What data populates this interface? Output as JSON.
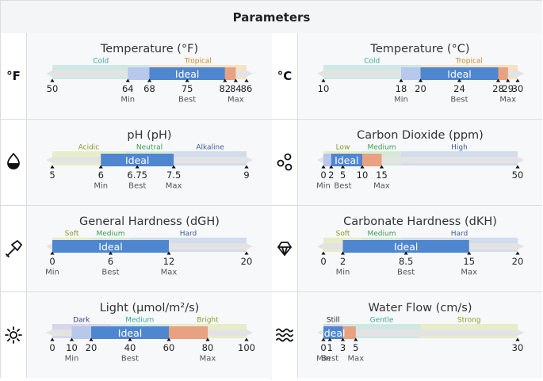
{
  "header": {
    "title": "Parameters"
  },
  "params": [
    {
      "key": "temp_f",
      "title": "Temperature (°F)",
      "icon": "°F",
      "icon_name": "fahrenheit-icon",
      "min": 50,
      "max": 86,
      "zones": [
        {
          "label": "Cold",
          "from": 50,
          "to": 68,
          "color": "#cfe8e4",
          "text_color": "#3aa79b"
        },
        {
          "label": "Tropical",
          "from": 68,
          "to": 86,
          "color": "#f6e2c4",
          "text_color": "#c8892a"
        }
      ],
      "ideal": {
        "label": "Ideal",
        "from": 68,
        "to": 82
      },
      "under": {
        "from": 64,
        "to": 68
      },
      "over": {
        "from": 82,
        "to": 84
      },
      "ticks": [
        {
          "value": 50,
          "label": "50",
          "sub": ""
        },
        {
          "value": 64,
          "label": "64",
          "sub": "Min"
        },
        {
          "value": 68,
          "label": "68",
          "sub": ""
        },
        {
          "value": 75,
          "label": "75",
          "sub": "Best"
        },
        {
          "value": 82,
          "label": "82",
          "sub": ""
        },
        {
          "value": 84,
          "label": "84",
          "sub": "Max"
        },
        {
          "value": 86,
          "label": "86",
          "sub": ""
        }
      ]
    },
    {
      "key": "temp_c",
      "title": "Temperature (°C)",
      "icon": "°C",
      "icon_name": "celsius-icon",
      "min": 10,
      "max": 30,
      "zones": [
        {
          "label": "Cold",
          "from": 10,
          "to": 20,
          "color": "#cfe8e4",
          "text_color": "#3aa79b"
        },
        {
          "label": "Tropical",
          "from": 20,
          "to": 30,
          "color": "#f6e2c4",
          "text_color": "#c8892a"
        }
      ],
      "ideal": {
        "label": "Ideal",
        "from": 20,
        "to": 28
      },
      "under": {
        "from": 18,
        "to": 20
      },
      "over": {
        "from": 28,
        "to": 29
      },
      "ticks": [
        {
          "value": 10,
          "label": "10",
          "sub": ""
        },
        {
          "value": 18,
          "label": "18",
          "sub": "Min"
        },
        {
          "value": 20,
          "label": "20",
          "sub": ""
        },
        {
          "value": 24,
          "label": "24",
          "sub": "Best"
        },
        {
          "value": 28,
          "label": "28",
          "sub": ""
        },
        {
          "value": 29,
          "label": "29",
          "sub": "Max"
        },
        {
          "value": 30,
          "label": "30",
          "sub": ""
        }
      ]
    },
    {
      "key": "ph",
      "title": "pH (pH)",
      "icon": "",
      "icon_name": "water-drop-icon",
      "min": 5,
      "max": 9,
      "zones": [
        {
          "label": "Acidic",
          "from": 5,
          "to": 6.5,
          "color": "#e7ecc9",
          "text_color": "#8a9a2a"
        },
        {
          "label": "Neutral",
          "from": 6.5,
          "to": 7.5,
          "color": "#d4ead7",
          "text_color": "#3f9b50"
        },
        {
          "label": "Alkaline",
          "from": 7.5,
          "to": 9,
          "color": "#d3dcec",
          "text_color": "#3c5f98"
        }
      ],
      "ideal": {
        "label": "Ideal",
        "from": 6,
        "to": 7.5
      },
      "under": null,
      "over": null,
      "ticks": [
        {
          "value": 5,
          "label": "5",
          "sub": ""
        },
        {
          "value": 6,
          "label": "6",
          "sub": "Min"
        },
        {
          "value": 6.75,
          "label": "6.75",
          "sub": "Best"
        },
        {
          "value": 7.5,
          "label": "7.5",
          "sub": "Max"
        },
        {
          "value": 9,
          "label": "9",
          "sub": ""
        }
      ]
    },
    {
      "key": "co2",
      "title": "Carbon Dioxide (ppm)",
      "icon": "",
      "icon_name": "bubbles-icon",
      "min": 0,
      "max": 50,
      "zones": [
        {
          "label": "Low",
          "from": 0,
          "to": 10,
          "color": "#e7ecc9",
          "text_color": "#8a9a2a"
        },
        {
          "label": "Medium",
          "from": 10,
          "to": 20,
          "color": "#d4ead7",
          "text_color": "#3f9b50"
        },
        {
          "label": "High",
          "from": 20,
          "to": 50,
          "color": "#d3dcec",
          "text_color": "#3c5f98"
        }
      ],
      "ideal": {
        "label": "Ideal",
        "from": 2,
        "to": 10
      },
      "under": {
        "from": 0,
        "to": 2
      },
      "over": {
        "from": 10,
        "to": 15
      },
      "ticks": [
        {
          "value": 0,
          "label": "0",
          "sub": "Min"
        },
        {
          "value": 2,
          "label": "2",
          "sub": ""
        },
        {
          "value": 5,
          "label": "5",
          "sub": "Best"
        },
        {
          "value": 10,
          "label": "10",
          "sub": ""
        },
        {
          "value": 15,
          "label": "15",
          "sub": "Max"
        },
        {
          "value": 50,
          "label": "50",
          "sub": ""
        }
      ]
    },
    {
      "key": "gh",
      "title": "General Hardness (dGH)",
      "icon": "",
      "icon_name": "hammer-icon",
      "min": 0,
      "max": 20,
      "zones": [
        {
          "label": "Soft",
          "from": 0,
          "to": 4,
          "color": "#e7ecc9",
          "text_color": "#8a9a2a"
        },
        {
          "label": "Medium",
          "from": 4,
          "to": 8,
          "color": "#d4ead7",
          "text_color": "#3f9b50"
        },
        {
          "label": "Hard",
          "from": 8,
          "to": 20,
          "color": "#d3dcec",
          "text_color": "#3c5f98"
        }
      ],
      "ideal": {
        "label": "Ideal",
        "from": 0,
        "to": 12
      },
      "under": null,
      "over": null,
      "ticks": [
        {
          "value": 0,
          "label": "0",
          "sub": "Min"
        },
        {
          "value": 6,
          "label": "6",
          "sub": "Best"
        },
        {
          "value": 12,
          "label": "12",
          "sub": "Max"
        },
        {
          "value": 20,
          "label": "20",
          "sub": ""
        }
      ]
    },
    {
      "key": "kh",
      "title": "Carbonate Hardness (dKH)",
      "icon": "",
      "icon_name": "diamond-icon",
      "min": 0,
      "max": 20,
      "zones": [
        {
          "label": "Soft",
          "from": 0,
          "to": 4,
          "color": "#e7ecc9",
          "text_color": "#8a9a2a"
        },
        {
          "label": "Medium",
          "from": 4,
          "to": 8,
          "color": "#d4ead7",
          "text_color": "#3f9b50"
        },
        {
          "label": "Hard",
          "from": 8,
          "to": 20,
          "color": "#d3dcec",
          "text_color": "#3c5f98"
        }
      ],
      "ideal": {
        "label": "Ideal",
        "from": 2,
        "to": 15
      },
      "under": null,
      "over": null,
      "ticks": [
        {
          "value": 0,
          "label": "0",
          "sub": ""
        },
        {
          "value": 2,
          "label": "2",
          "sub": "Min"
        },
        {
          "value": 8.5,
          "label": "8.5",
          "sub": "Best"
        },
        {
          "value": 15,
          "label": "15",
          "sub": "Max"
        },
        {
          "value": 20,
          "label": "20",
          "sub": ""
        }
      ]
    },
    {
      "key": "light",
      "title": "Light (µmol/m²/s)",
      "icon": "",
      "icon_name": "sun-icon",
      "min": 0,
      "max": 100,
      "zones": [
        {
          "label": "Dark",
          "from": 0,
          "to": 30,
          "color": "#d6d6ec",
          "text_color": "#3b3b8a"
        },
        {
          "label": "Medium",
          "from": 30,
          "to": 60,
          "color": "#cfe8e4",
          "text_color": "#3aa79b"
        },
        {
          "label": "Bright",
          "from": 60,
          "to": 100,
          "color": "#e7ecc9",
          "text_color": "#8a9a2a"
        }
      ],
      "ideal": {
        "label": "Ideal",
        "from": 20,
        "to": 60
      },
      "under": {
        "from": 10,
        "to": 20
      },
      "over": {
        "from": 60,
        "to": 80
      },
      "ticks": [
        {
          "value": 0,
          "label": "0",
          "sub": ""
        },
        {
          "value": 10,
          "label": "10",
          "sub": "Min"
        },
        {
          "value": 20,
          "label": "20",
          "sub": ""
        },
        {
          "value": 40,
          "label": "40",
          "sub": "Best"
        },
        {
          "value": 60,
          "label": "60",
          "sub": ""
        },
        {
          "value": 80,
          "label": "80",
          "sub": "Max"
        },
        {
          "value": 100,
          "label": "100",
          "sub": ""
        }
      ]
    },
    {
      "key": "flow",
      "title": "Water Flow (cm/s)",
      "icon": "",
      "icon_name": "waves-icon",
      "min": 0,
      "max": 30,
      "zones": [
        {
          "label": "Still",
          "from": 0,
          "to": 3,
          "color": "#d6d6ec",
          "text_color": "#222222"
        },
        {
          "label": "Gentle",
          "from": 3,
          "to": 15,
          "color": "#cfe8e4",
          "text_color": "#3aa79b"
        },
        {
          "label": "Strong",
          "from": 15,
          "to": 30,
          "color": "#e7ecc9",
          "text_color": "#8a9a2a"
        }
      ],
      "ideal": {
        "label": "Ideal",
        "from": 0,
        "to": 3
      },
      "under": null,
      "over": {
        "from": 3,
        "to": 5
      },
      "ticks": [
        {
          "value": 0,
          "label": "0",
          "sub": "Min"
        },
        {
          "value": 1,
          "label": "1",
          "sub": "Best"
        },
        {
          "value": 3,
          "label": "3",
          "sub": ""
        },
        {
          "value": 5,
          "label": "5",
          "sub": "Max"
        },
        {
          "value": 30,
          "label": "30",
          "sub": ""
        }
      ]
    }
  ],
  "colors": {
    "ideal": "#4f86d0",
    "under": "#b7c8ea",
    "over": "#e8a181",
    "track": "#e3e3e3"
  }
}
